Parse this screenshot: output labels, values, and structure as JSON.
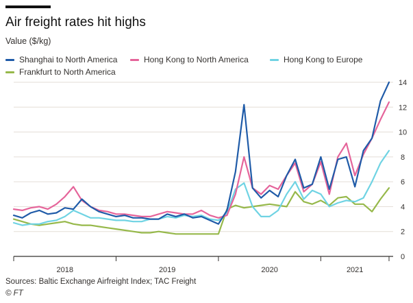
{
  "header": {
    "title": "Air freight rates hit highs",
    "subtitle": "Value ($/kg)"
  },
  "footer": {
    "sources": "Sources: Baltic Exchange Airfreight Index; TAC Freight",
    "credit": "© FT"
  },
  "colors": {
    "shanghai": "#1f5ba8",
    "hk_na": "#e5649a",
    "hk_eu": "#6fd3e3",
    "frankfurt": "#96b84a",
    "grid": "#e3ddd6",
    "axis": "#33302e"
  },
  "chart_data": {
    "type": "line",
    "title": "Air freight rates hit highs",
    "ylabel": "Value ($/kg)",
    "ylim": [
      0,
      14
    ],
    "y_ticks": [
      0,
      2,
      4,
      6,
      8,
      10,
      12,
      14
    ],
    "y_axis_side": "right",
    "grid": "horizontal",
    "xlim": [
      "2017-11",
      "2021-07"
    ],
    "x_tick_labels": [
      "2018",
      "2019",
      "2020",
      "2021"
    ],
    "x_tick_marks": [
      "2017-11",
      "2018-11",
      "2019-11",
      "2020-11",
      "2021-07"
    ],
    "x_label_positions": [
      "2018-05",
      "2019-05",
      "2020-05",
      "2021-03"
    ],
    "legend_position": "top",
    "x": [
      "2017-11",
      "2017-12",
      "2018-01",
      "2018-02",
      "2018-03",
      "2018-04",
      "2018-05",
      "2018-06",
      "2018-07",
      "2018-08",
      "2018-09",
      "2018-10",
      "2018-11",
      "2018-12",
      "2019-01",
      "2019-02",
      "2019-03",
      "2019-04",
      "2019-05",
      "2019-06",
      "2019-07",
      "2019-08",
      "2019-09",
      "2019-10",
      "2019-11",
      "2019-12",
      "2020-01",
      "2020-02",
      "2020-03",
      "2020-04",
      "2020-05",
      "2020-06",
      "2020-07",
      "2020-08",
      "2020-09",
      "2020-10",
      "2020-11",
      "2020-12",
      "2021-01",
      "2021-02",
      "2021-03",
      "2021-04",
      "2021-05",
      "2021-06",
      "2021-07"
    ],
    "series": [
      {
        "name": "Shanghai to North America",
        "color_key": "shanghai",
        "values": [
          3.3,
          3.1,
          3.5,
          3.7,
          3.4,
          3.5,
          3.9,
          3.8,
          4.6,
          4.0,
          3.6,
          3.4,
          3.2,
          3.3,
          3.1,
          3.1,
          3.0,
          3.0,
          3.4,
          3.2,
          3.4,
          3.1,
          3.2,
          2.9,
          2.6,
          3.7,
          6.8,
          12.2,
          5.5,
          4.7,
          5.3,
          4.8,
          6.5,
          7.8,
          5.5,
          5.8,
          8.0,
          5.4,
          7.8,
          8.0,
          5.6,
          8.5,
          9.5,
          12.5,
          14.0
        ]
      },
      {
        "name": "Hong Kong to North America",
        "color_key": "hk_na",
        "values": [
          3.8,
          3.7,
          3.9,
          4.0,
          3.8,
          4.2,
          4.8,
          5.6,
          4.5,
          4.0,
          3.7,
          3.6,
          3.4,
          3.4,
          3.3,
          3.2,
          3.2,
          3.4,
          3.6,
          3.5,
          3.4,
          3.4,
          3.7,
          3.3,
          3.1,
          3.3,
          5.0,
          8.0,
          5.5,
          5.0,
          5.7,
          5.4,
          6.5,
          7.5,
          5.2,
          5.8,
          7.6,
          5.0,
          8.0,
          9.1,
          6.5,
          8.2,
          9.5,
          11.0,
          12.4
        ]
      },
      {
        "name": "Hong Kong to Europe",
        "color_key": "hk_eu",
        "values": [
          2.7,
          2.5,
          2.6,
          2.6,
          2.8,
          2.9,
          3.2,
          3.7,
          3.4,
          3.1,
          3.1,
          3.0,
          2.9,
          2.9,
          2.8,
          2.8,
          3.0,
          3.0,
          3.2,
          3.1,
          3.3,
          3.2,
          3.3,
          3.0,
          2.9,
          3.5,
          5.4,
          5.9,
          4.0,
          3.2,
          3.2,
          3.7,
          5.0,
          6.0,
          4.6,
          5.3,
          5.0,
          4.0,
          4.3,
          4.5,
          4.4,
          4.7,
          6.0,
          7.5,
          8.5
        ]
      },
      {
        "name": "Frankfurt to North America",
        "color_key": "frankfurt",
        "values": [
          3.0,
          2.8,
          2.6,
          2.5,
          2.6,
          2.7,
          2.8,
          2.6,
          2.5,
          2.5,
          2.4,
          2.3,
          2.2,
          2.1,
          2.0,
          1.9,
          1.9,
          2.0,
          1.9,
          1.8,
          1.8,
          1.8,
          1.8,
          1.8,
          1.8,
          3.8,
          4.1,
          3.9,
          4.0,
          4.1,
          4.2,
          4.1,
          4.0,
          5.2,
          4.4,
          4.2,
          4.5,
          4.1,
          4.7,
          4.8,
          4.2,
          4.2,
          3.6,
          4.6,
          5.5
        ]
      }
    ]
  }
}
